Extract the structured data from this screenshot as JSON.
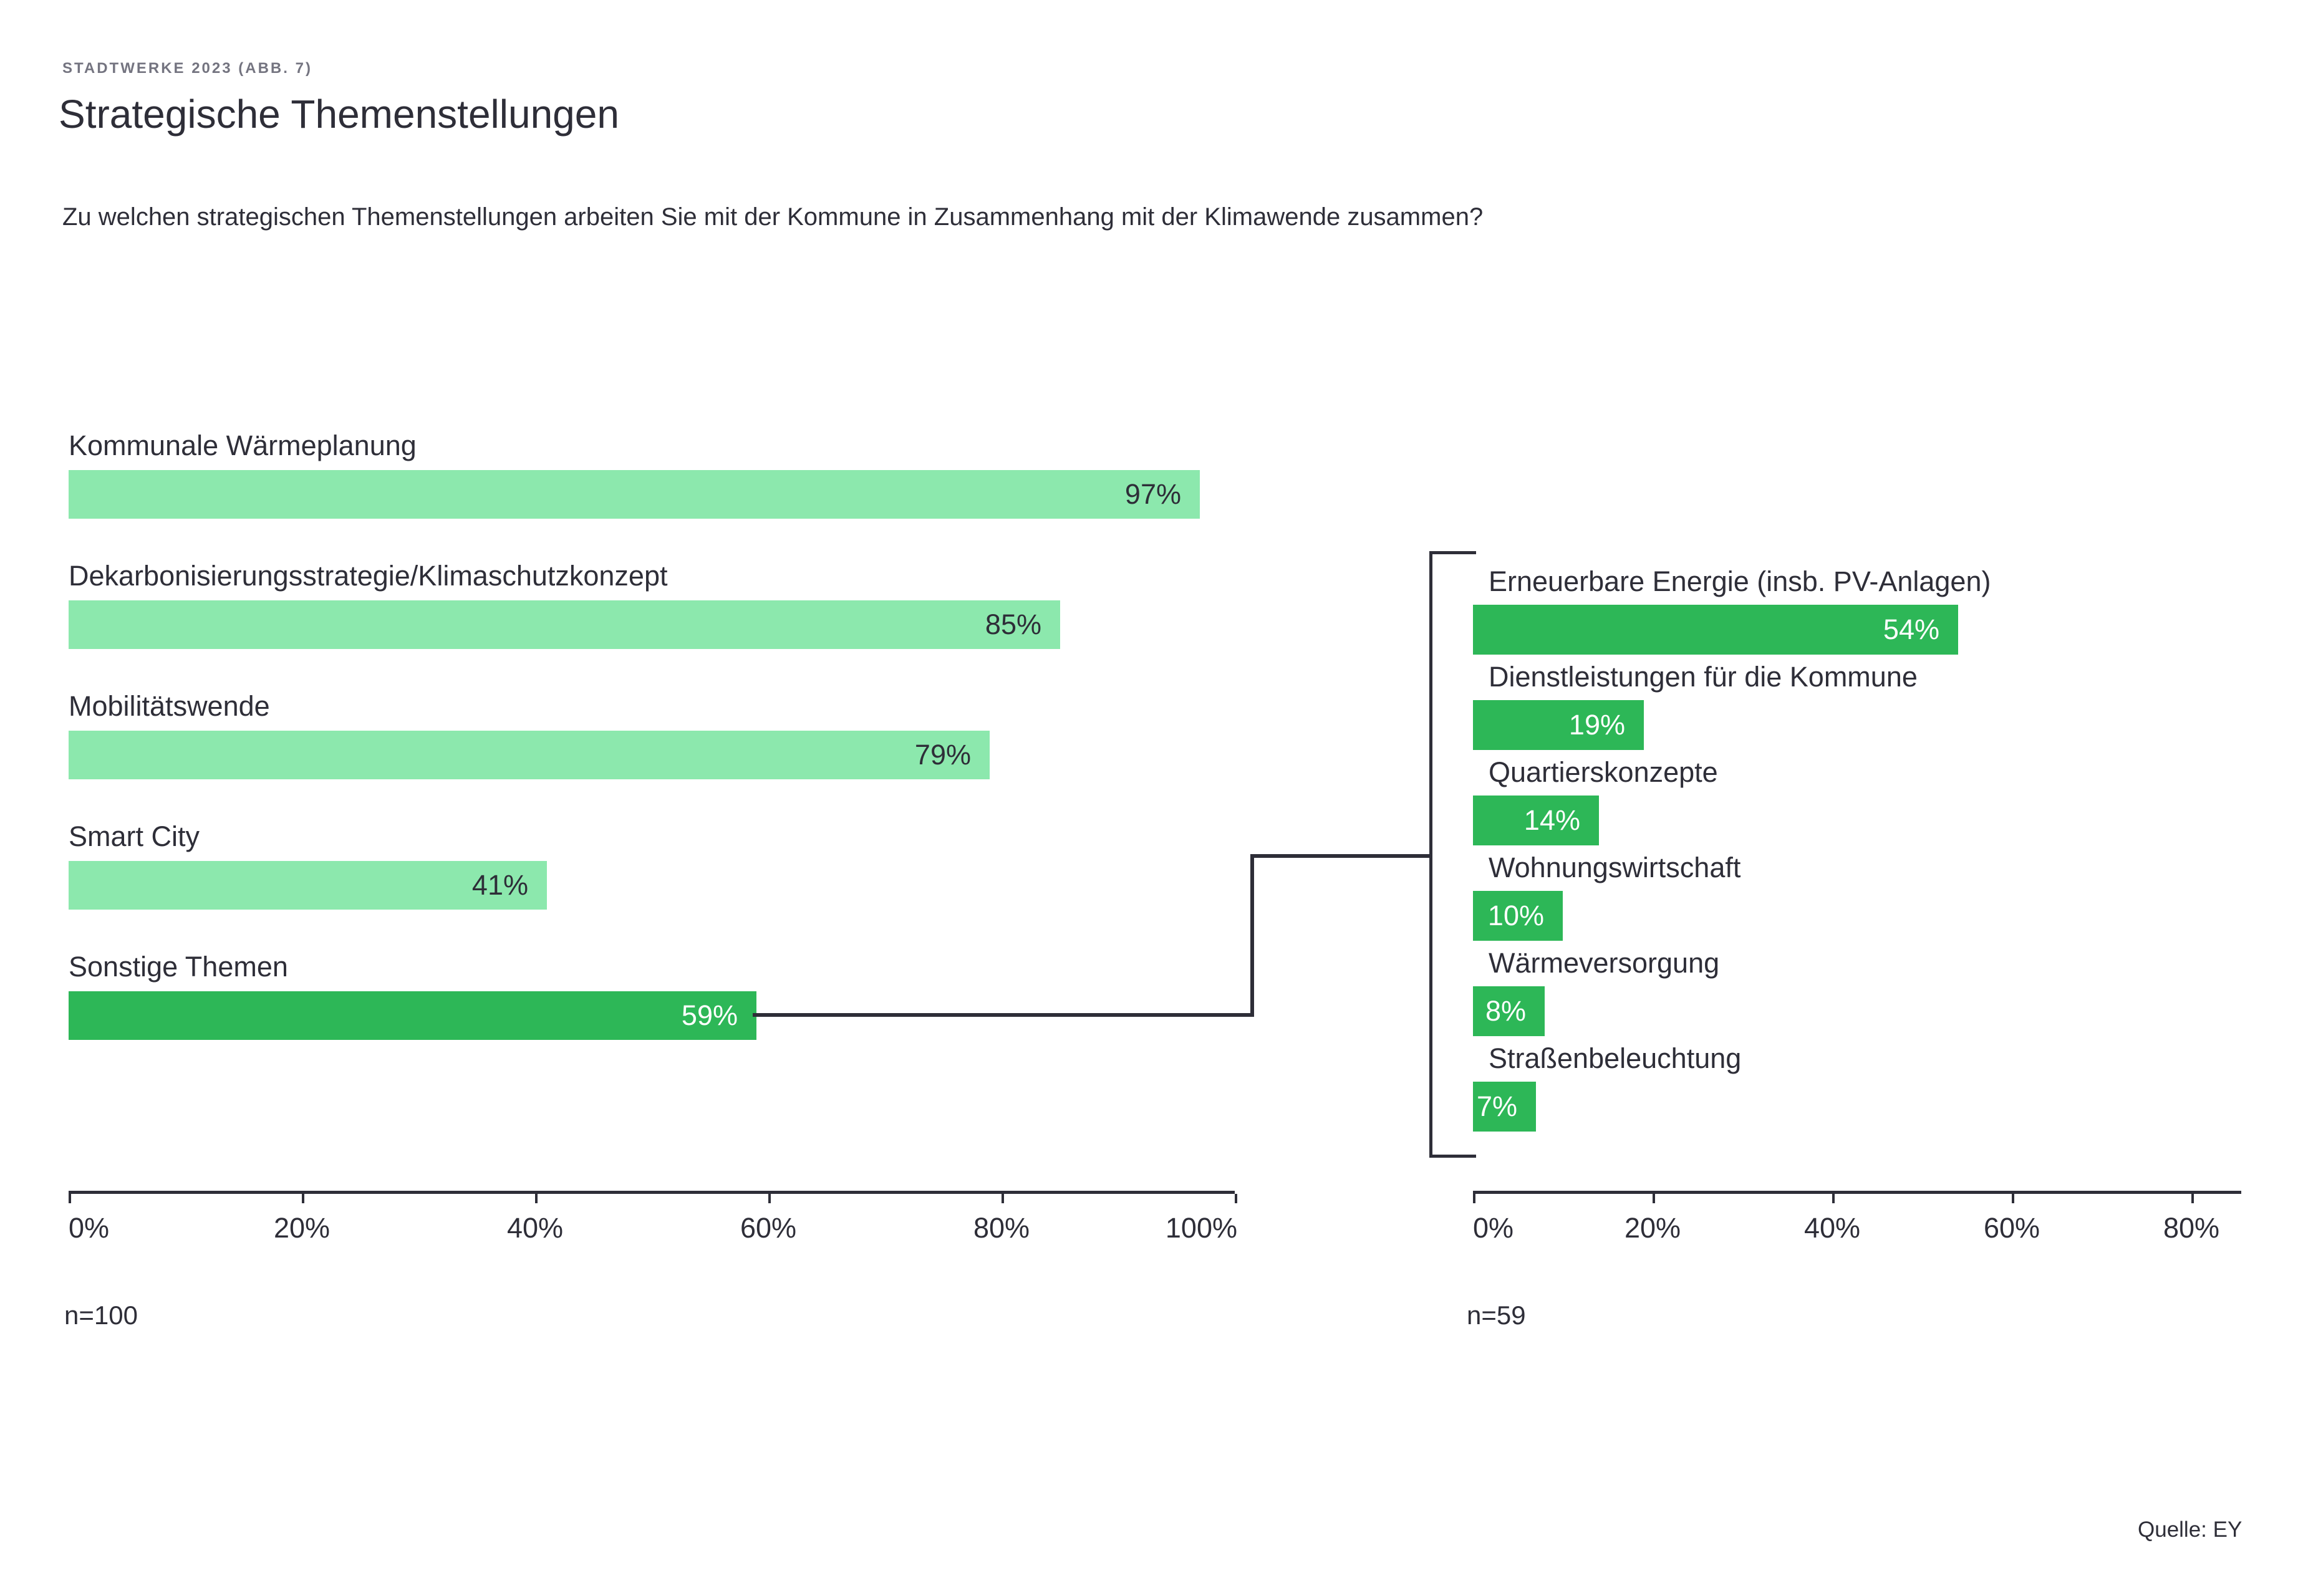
{
  "header": {
    "eyebrow": "STADTWERKE 2023 (ABB. 7)",
    "title": "Strategische Themenstellungen",
    "question": "Zu welchen strategischen Themenstellungen arbeiten Sie mit der Kommune in Zusammenhang mit der Klimawende zusammen?"
  },
  "source": "Quelle: EY",
  "colors": {
    "bar_light": "#8CE8AD",
    "bar_dark": "#2DB757",
    "ink": "#2E2E38",
    "muted": "#747480",
    "value_on_light": "#2E2E38",
    "value_on_dark": "#FFFFFF"
  },
  "chart_data": [
    {
      "id": "main",
      "type": "bar",
      "orientation": "horizontal",
      "sample_label": "n=100",
      "axis_max": 100,
      "axis_ticks": [
        "0%",
        "20%",
        "40%",
        "60%",
        "80%",
        "100%"
      ],
      "axis_tick_values": [
        0,
        20,
        40,
        60,
        80,
        100
      ],
      "grid": false,
      "categories": [
        "Kommunale Wärmeplanung",
        "Dekarbonisierungsstrategie/Klimaschutzkonzept",
        "Mobilitätswende",
        "Smart City",
        "Sonstige Themen"
      ],
      "values": [
        97,
        85,
        79,
        41,
        59
      ],
      "value_labels": [
        "97%",
        "85%",
        "79%",
        "41%",
        "59%"
      ],
      "bar_styles": [
        "light",
        "light",
        "light",
        "light",
        "dark"
      ]
    },
    {
      "id": "detail",
      "type": "bar",
      "orientation": "horizontal",
      "sample_label": "n=59",
      "axis_max": 85.5,
      "axis_ticks": [
        "0%",
        "20%",
        "40%",
        "60%",
        "80%"
      ],
      "axis_tick_values": [
        0,
        20,
        40,
        60,
        80
      ],
      "grid": false,
      "categories": [
        "Erneuerbare Energie (insb. PV-Anlagen)",
        "Dienstleistungen für die Kommune",
        "Quartierskonzepte",
        "Wohnungswirtschaft",
        "Wärmeversorgung",
        "Straßenbeleuchtung"
      ],
      "values": [
        54,
        19,
        14,
        10,
        8,
        7
      ],
      "value_labels": [
        "54%",
        "19%",
        "14%",
        "10%",
        "8%",
        "7%"
      ],
      "bar_styles": [
        "dark",
        "dark",
        "dark",
        "dark",
        "dark",
        "dark"
      ]
    }
  ]
}
